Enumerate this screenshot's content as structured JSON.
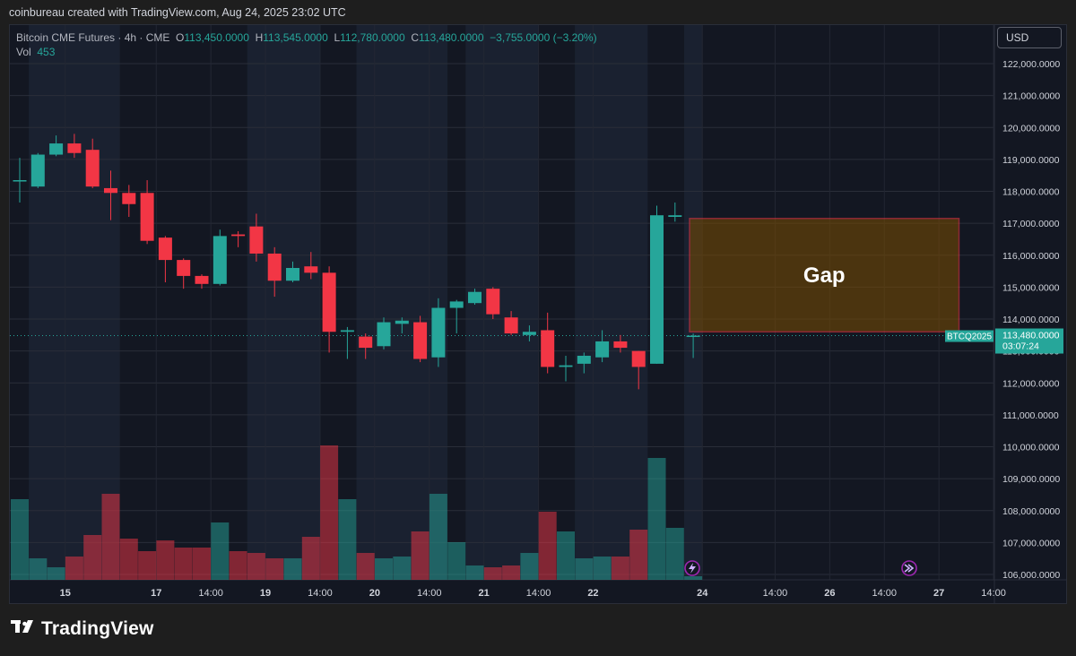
{
  "header": {
    "attribution": "coinbureau created with TradingView.com, Aug 24, 2025 23:02 UTC"
  },
  "legend": {
    "symbol": "Bitcoin CME Futures · 4h · CME",
    "open_label": "O",
    "open": "113,450.0000",
    "high_label": "H",
    "high": "113,545.0000",
    "low_label": "L",
    "low": "112,780.0000",
    "close_label": "C",
    "close": "113,480.0000",
    "change": "−3,755.0000 (−3.20%)",
    "vol_label": "Vol",
    "vol": "453"
  },
  "currency_button": "USD",
  "brand": "TradingView",
  "colors": {
    "up": "#26a69a",
    "down": "#f23645",
    "gap_border": "#f23645",
    "gap_fill": "#7a4c00",
    "session_band": "#1c2333",
    "background": "#131722"
  },
  "chart_data": {
    "type": "candlestick",
    "title": "Bitcoin CME Futures · 4h · CME",
    "ylim": [
      105800,
      122500
    ],
    "y_ticks": [
      122000,
      121000,
      120000,
      119000,
      118000,
      117000,
      116000,
      115000,
      114000,
      113000,
      112000,
      111000,
      110000,
      109000,
      108000,
      107000,
      106000
    ],
    "y_tick_labels": [
      "122,000.0000",
      "121,000.0000",
      "120,000.0000",
      "119,000.0000",
      "118,000.0000",
      "117,000.0000",
      "116,000.0000",
      "115,000.0000",
      "114,000.0000",
      "113,000.0000",
      "112,000.0000",
      "111,000.0000",
      "110,000.0000",
      "109,000.0000",
      "108,000.0000",
      "107,000.0000",
      "106,000.0000"
    ],
    "x_ticks": [
      {
        "bar": 2.5,
        "label": "15"
      },
      {
        "bar": 7.5,
        "label": "17"
      },
      {
        "bar": 10.5,
        "label": "14:00"
      },
      {
        "bar": 13.5,
        "label": "19"
      },
      {
        "bar": 16.5,
        "label": "14:00"
      },
      {
        "bar": 19.5,
        "label": "20"
      },
      {
        "bar": 22.5,
        "label": "14:00"
      },
      {
        "bar": 25.5,
        "label": "21"
      },
      {
        "bar": 28.5,
        "label": "14:00"
      },
      {
        "bar": 31.5,
        "label": "22"
      },
      {
        "bar": 37.5,
        "label": "24"
      },
      {
        "bar": 41.5,
        "label": "14:00"
      },
      {
        "bar": 44.5,
        "label": "26"
      },
      {
        "bar": 47.5,
        "label": "14:00"
      },
      {
        "bar": 50.5,
        "label": "27"
      },
      {
        "bar": 53.5,
        "label": "14:00"
      }
    ],
    "candles": [
      {
        "o": 118350,
        "h": 119050,
        "l": 117650,
        "c": 118350,
        "v": 0.45
      },
      {
        "o": 118150,
        "h": 119200,
        "l": 118100,
        "c": 119150,
        "v": 0.12
      },
      {
        "o": 119150,
        "h": 119750,
        "l": 119100,
        "c": 119500,
        "v": 0.07
      },
      {
        "o": 119500,
        "h": 119800,
        "l": 119050,
        "c": 119200,
        "v": 0.13
      },
      {
        "o": 119300,
        "h": 119650,
        "l": 118100,
        "c": 118150,
        "v": 0.25
      },
      {
        "o": 118100,
        "h": 118650,
        "l": 117100,
        "c": 117950,
        "v": 0.48
      },
      {
        "o": 117950,
        "h": 118200,
        "l": 117200,
        "c": 117600,
        "v": 0.23
      },
      {
        "o": 117950,
        "h": 118350,
        "l": 116350,
        "c": 116450,
        "v": 0.16
      },
      {
        "o": 116550,
        "h": 116600,
        "l": 115150,
        "c": 115850,
        "v": 0.22
      },
      {
        "o": 115850,
        "h": 115900,
        "l": 114950,
        "c": 115350,
        "v": 0.18
      },
      {
        "o": 115350,
        "h": 115400,
        "l": 114950,
        "c": 115100,
        "v": 0.18
      },
      {
        "o": 115100,
        "h": 116800,
        "l": 115050,
        "c": 116600,
        "v": 0.32
      },
      {
        "o": 116650,
        "h": 116750,
        "l": 116250,
        "c": 116600,
        "v": 0.16
      },
      {
        "o": 116900,
        "h": 117300,
        "l": 115800,
        "c": 116050,
        "v": 0.15
      },
      {
        "o": 116050,
        "h": 116250,
        "l": 114700,
        "c": 115200,
        "v": 0.12
      },
      {
        "o": 115200,
        "h": 115800,
        "l": 115150,
        "c": 115600,
        "v": 0.12
      },
      {
        "o": 115650,
        "h": 116100,
        "l": 115250,
        "c": 115450,
        "v": 0.24
      },
      {
        "o": 115450,
        "h": 115650,
        "l": 112950,
        "c": 113600,
        "v": 0.75
      },
      {
        "o": 113600,
        "h": 113750,
        "l": 112750,
        "c": 113650,
        "v": 0.45
      },
      {
        "o": 113450,
        "h": 113550,
        "l": 112750,
        "c": 113100,
        "v": 0.15
      },
      {
        "o": 113150,
        "h": 114050,
        "l": 113050,
        "c": 113900,
        "v": 0.12
      },
      {
        "o": 113850,
        "h": 114050,
        "l": 113550,
        "c": 113950,
        "v": 0.13
      },
      {
        "o": 113900,
        "h": 114100,
        "l": 112650,
        "c": 112750,
        "v": 0.27
      },
      {
        "o": 112800,
        "h": 114650,
        "l": 112500,
        "c": 114350,
        "v": 0.48
      },
      {
        "o": 114350,
        "h": 114600,
        "l": 113550,
        "c": 114550,
        "v": 0.21
      },
      {
        "o": 114500,
        "h": 114950,
        "l": 114450,
        "c": 114850,
        "v": 0.08
      },
      {
        "o": 114950,
        "h": 115000,
        "l": 114000,
        "c": 114150,
        "v": 0.07
      },
      {
        "o": 114050,
        "h": 114250,
        "l": 113500,
        "c": 113550,
        "v": 0.08
      },
      {
        "o": 113500,
        "h": 113800,
        "l": 113300,
        "c": 113600,
        "v": 0.15
      },
      {
        "o": 113650,
        "h": 114200,
        "l": 112300,
        "c": 112500,
        "v": 0.38
      },
      {
        "o": 112500,
        "h": 112850,
        "l": 112050,
        "c": 112550,
        "v": 0.27
      },
      {
        "o": 112600,
        "h": 112950,
        "l": 112300,
        "c": 112850,
        "v": 0.12
      },
      {
        "o": 112800,
        "h": 113650,
        "l": 112650,
        "c": 113300,
        "v": 0.13
      },
      {
        "o": 113300,
        "h": 113500,
        "l": 112950,
        "c": 113100,
        "v": 0.13
      },
      {
        "o": 113000,
        "h": 113000,
        "l": 111800,
        "c": 112500,
        "v": 0.28
      },
      {
        "o": 112600,
        "h": 117550,
        "l": 112600,
        "c": 117250,
        "v": 0.68
      },
      {
        "o": 117200,
        "h": 117650,
        "l": 117050,
        "c": 117250,
        "v": 0.29
      },
      {
        "o": 113450,
        "h": 113545,
        "l": 112780,
        "c": 113480,
        "v": 0.02
      }
    ],
    "gap": {
      "from_price": 113600,
      "to_price": 117150,
      "start_bar": 36.8,
      "end_bar": 51.6,
      "label": "Gap"
    },
    "last_price": {
      "symbol": "BTCQ2025",
      "price_label": "113,480.0000",
      "countdown": "03:07:24",
      "value": 113480
    }
  }
}
